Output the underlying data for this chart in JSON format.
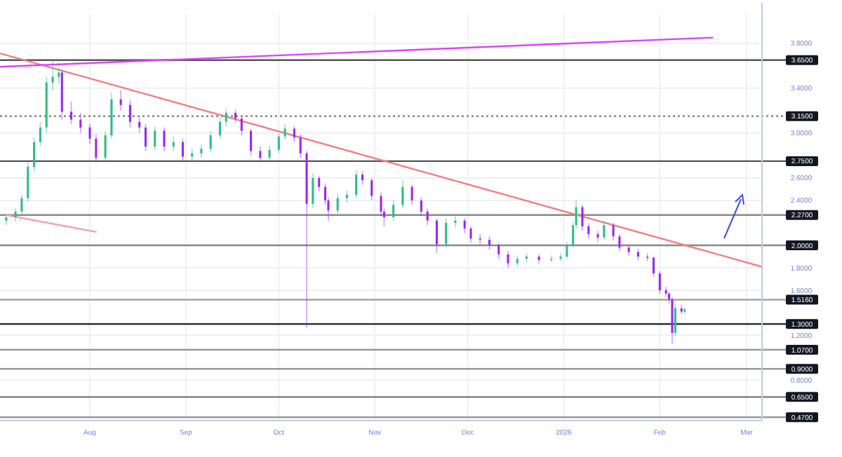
{
  "chart_data": {
    "type": "candlestick",
    "x": [
      "2025-07-05",
      "2025-07-08",
      "2025-07-10",
      "2025-07-12",
      "2025-07-14",
      "2025-07-16",
      "2025-07-18",
      "2025-07-20",
      "2025-07-22",
      "2025-07-23",
      "2025-07-26",
      "2025-07-29",
      "2025-08-01",
      "2025-08-03",
      "2025-08-06",
      "2025-08-08",
      "2025-08-11",
      "2025-08-14",
      "2025-08-17",
      "2025-08-19",
      "2025-08-22",
      "2025-08-25",
      "2025-08-28",
      "2025-08-31",
      "2025-09-03",
      "2025-09-06",
      "2025-09-09",
      "2025-09-12",
      "2025-09-14",
      "2025-09-17",
      "2025-09-19",
      "2025-09-22",
      "2025-09-25",
      "2025-09-28",
      "2025-10-01",
      "2025-10-03",
      "2025-10-06",
      "2025-10-08",
      "2025-10-10",
      "2025-10-12",
      "2025-10-14",
      "2025-10-16",
      "2025-10-17",
      "2025-10-20",
      "2025-10-23",
      "2025-10-26",
      "2025-10-28",
      "2025-10-31",
      "2025-11-03",
      "2025-11-04",
      "2025-11-07",
      "2025-11-10",
      "2025-11-13",
      "2025-11-16",
      "2025-11-18",
      "2025-11-21",
      "2025-11-24",
      "2025-11-27",
      "2025-11-30",
      "2025-12-02",
      "2025-12-05",
      "2025-12-08",
      "2025-12-11",
      "2025-12-14",
      "2025-12-17",
      "2025-12-20",
      "2025-12-24",
      "2025-12-28",
      "2025-12-31",
      "2026-01-02",
      "2026-01-04",
      "2026-01-05",
      "2026-01-07",
      "2026-01-09",
      "2026-01-12",
      "2026-01-14",
      "2026-01-17",
      "2026-01-19",
      "2026-01-22",
      "2026-01-25",
      "2026-01-28",
      "2026-01-30",
      "2026-02-01",
      "2026-02-03",
      "2026-02-04",
      "2026-02-05",
      "2026-02-06",
      "2026-02-08",
      "2026-02-09"
    ],
    "ohlc": [
      [
        2.22,
        2.28,
        2.18,
        2.25
      ],
      [
        2.25,
        2.33,
        2.21,
        2.3
      ],
      [
        2.3,
        2.45,
        2.27,
        2.42
      ],
      [
        2.42,
        2.74,
        2.39,
        2.7
      ],
      [
        2.7,
        2.96,
        2.66,
        2.92
      ],
      [
        2.92,
        3.1,
        2.88,
        3.05
      ],
      [
        3.05,
        3.5,
        3.0,
        3.45
      ],
      [
        3.45,
        3.66,
        3.38,
        3.5
      ],
      [
        3.5,
        3.63,
        3.44,
        3.54
      ],
      [
        3.54,
        3.56,
        3.12,
        3.19
      ],
      [
        3.19,
        3.28,
        3.08,
        3.12
      ],
      [
        3.12,
        3.18,
        3.0,
        3.05
      ],
      [
        3.05,
        3.08,
        2.9,
        2.95
      ],
      [
        2.95,
        2.99,
        2.74,
        2.78
      ],
      [
        2.78,
        3.02,
        2.75,
        2.98
      ],
      [
        2.98,
        3.36,
        2.95,
        3.3
      ],
      [
        3.3,
        3.38,
        3.2,
        3.25
      ],
      [
        3.25,
        3.29,
        3.05,
        3.1
      ],
      [
        3.1,
        3.14,
        3.0,
        3.05
      ],
      [
        3.05,
        3.08,
        2.84,
        2.88
      ],
      [
        2.88,
        3.06,
        2.85,
        3.02
      ],
      [
        3.02,
        3.05,
        2.84,
        2.88
      ],
      [
        2.88,
        2.97,
        2.84,
        2.92
      ],
      [
        2.92,
        2.95,
        2.75,
        2.79
      ],
      [
        2.79,
        2.86,
        2.74,
        2.82
      ],
      [
        2.82,
        2.9,
        2.78,
        2.86
      ],
      [
        2.86,
        3.02,
        2.83,
        2.98
      ],
      [
        2.98,
        3.14,
        2.95,
        3.1
      ],
      [
        3.1,
        3.22,
        3.06,
        3.18
      ],
      [
        3.18,
        3.21,
        3.09,
        3.13
      ],
      [
        3.13,
        3.15,
        2.98,
        3.02
      ],
      [
        3.02,
        3.04,
        2.8,
        2.84
      ],
      [
        2.84,
        2.88,
        2.74,
        2.78
      ],
      [
        2.78,
        2.89,
        2.75,
        2.85
      ],
      [
        2.85,
        3.0,
        2.82,
        2.97
      ],
      [
        2.97,
        3.08,
        2.94,
        3.04
      ],
      [
        3.04,
        3.06,
        2.92,
        2.96
      ],
      [
        2.96,
        2.99,
        2.78,
        2.82
      ],
      [
        2.82,
        2.84,
        1.27,
        2.37
      ],
      [
        2.37,
        2.64,
        2.33,
        2.6
      ],
      [
        2.6,
        2.62,
        2.48,
        2.52
      ],
      [
        2.52,
        2.55,
        2.36,
        2.4
      ],
      [
        2.4,
        2.43,
        2.22,
        2.31
      ],
      [
        2.31,
        2.46,
        2.28,
        2.42
      ],
      [
        2.42,
        2.49,
        2.38,
        2.45
      ],
      [
        2.45,
        2.67,
        2.42,
        2.63
      ],
      [
        2.63,
        2.66,
        2.54,
        2.58
      ],
      [
        2.58,
        2.6,
        2.4,
        2.44
      ],
      [
        2.44,
        2.47,
        2.26,
        2.3
      ],
      [
        2.3,
        2.33,
        2.17,
        2.25
      ],
      [
        2.25,
        2.4,
        2.22,
        2.36
      ],
      [
        2.36,
        2.58,
        2.33,
        2.52
      ],
      [
        2.52,
        2.54,
        2.36,
        2.4
      ],
      [
        2.4,
        2.43,
        2.26,
        2.3
      ],
      [
        2.3,
        2.33,
        2.18,
        2.22
      ],
      [
        2.22,
        2.24,
        1.93,
        2.01
      ],
      [
        2.01,
        2.24,
        1.98,
        2.2
      ],
      [
        2.2,
        2.26,
        2.16,
        2.22
      ],
      [
        2.22,
        2.24,
        2.11,
        2.15
      ],
      [
        2.15,
        2.17,
        2.02,
        2.06
      ],
      [
        2.06,
        2.1,
        2.01,
        2.05
      ],
      [
        2.05,
        2.08,
        1.96,
        2.0
      ],
      [
        2.0,
        2.02,
        1.88,
        1.92
      ],
      [
        1.92,
        1.95,
        1.8,
        1.84
      ],
      [
        1.84,
        1.91,
        1.81,
        1.88
      ],
      [
        1.88,
        1.93,
        1.85,
        1.9
      ],
      [
        1.9,
        1.92,
        1.84,
        1.87
      ],
      [
        1.87,
        1.91,
        1.85,
        1.88
      ],
      [
        1.88,
        1.93,
        1.86,
        1.9
      ],
      [
        1.9,
        2.03,
        1.88,
        2.0
      ],
      [
        2.0,
        2.21,
        1.98,
        2.18
      ],
      [
        2.18,
        2.4,
        2.15,
        2.34
      ],
      [
        2.34,
        2.36,
        2.13,
        2.17
      ],
      [
        2.17,
        2.2,
        2.06,
        2.1
      ],
      [
        2.1,
        2.13,
        2.03,
        2.07
      ],
      [
        2.07,
        2.22,
        2.05,
        2.18
      ],
      [
        2.18,
        2.2,
        2.04,
        2.08
      ],
      [
        2.08,
        2.1,
        1.95,
        1.98
      ],
      [
        1.98,
        2.01,
        1.91,
        1.94
      ],
      [
        1.94,
        1.97,
        1.87,
        1.9
      ],
      [
        1.9,
        1.93,
        1.86,
        1.89
      ],
      [
        1.89,
        1.9,
        1.72,
        1.75
      ],
      [
        1.75,
        1.77,
        1.57,
        1.6
      ],
      [
        1.6,
        1.63,
        1.54,
        1.57
      ],
      [
        1.57,
        1.59,
        1.48,
        1.52
      ],
      [
        1.52,
        1.54,
        1.12,
        1.22
      ],
      [
        1.22,
        1.48,
        1.19,
        1.44
      ],
      [
        1.44,
        1.47,
        1.39,
        1.41
      ],
      [
        1.41,
        1.45,
        1.39,
        1.43
      ]
    ],
    "series": [
      {
        "type": "line",
        "x": [
          "2025-07-03",
          "2026-03-06"
        ],
        "values": [
          3.71,
          1.81
        ],
        "color": "#f77c80"
      },
      {
        "type": "line",
        "x": [
          "2025-07-03",
          "2026-02-18"
        ],
        "values": [
          3.59,
          3.85
        ],
        "color": "#e040fb"
      },
      {
        "type": "line",
        "x": [
          "2025-07-05",
          "2025-08-03"
        ],
        "values": [
          2.27,
          2.12
        ],
        "color": "#f7a0a8"
      }
    ],
    "xlim": [
      "2025-07-03",
      "2026-03-06"
    ],
    "xticks": [
      {
        "value": "2025-08-01",
        "label": "Aug"
      },
      {
        "value": "2025-09-01",
        "label": "Sep"
      },
      {
        "value": "2025-10-01",
        "label": "Oct"
      },
      {
        "value": "2025-11-01",
        "label": "Nov"
      },
      {
        "value": "2025-12-01",
        "label": "Dec"
      },
      {
        "value": "2026-01-01",
        "label": "2026"
      },
      {
        "value": "2026-02-01",
        "label": "Feb"
      },
      {
        "value": "2026-03-01",
        "label": "Mar"
      }
    ],
    "ylim": [
      0.44,
      4.06
    ],
    "yticks": [
      {
        "value": 3.8,
        "label": "3.8000"
      },
      {
        "value": 3.4,
        "label": "3.4000"
      },
      {
        "value": 3.0,
        "label": "3.0000"
      },
      {
        "value": 2.6,
        "label": "2.6000"
      },
      {
        "value": 2.4,
        "label": "2.4000"
      },
      {
        "value": 1.8,
        "label": "1.8000"
      },
      {
        "value": 1.6,
        "label": "1.6000"
      },
      {
        "value": 1.2,
        "label": "1.2000"
      },
      {
        "value": 0.8,
        "label": "0.8000"
      }
    ],
    "ref_lines": [
      {
        "axis": "y",
        "value": 3.65,
        "label": "3.6500",
        "color": "#555555"
      },
      {
        "axis": "y",
        "value": 3.15,
        "label": "3.1500",
        "color": "#888888",
        "line_style": "dotted"
      },
      {
        "axis": "y",
        "value": 2.75,
        "label": "2.7500",
        "color": "#555555"
      },
      {
        "axis": "y",
        "value": 2.27,
        "label": "2.2700",
        "color": "#888888"
      },
      {
        "axis": "y",
        "value": 2.0,
        "label": "2.0000",
        "color": "#888888"
      },
      {
        "axis": "y",
        "value": 1.516,
        "label": "1.5160",
        "color": "#999999"
      },
      {
        "axis": "y",
        "value": 1.3,
        "label": "1.3000",
        "color": "#333333"
      },
      {
        "axis": "y",
        "value": 1.07,
        "label": "1.0700",
        "color": "#999999"
      },
      {
        "axis": "y",
        "value": 0.9,
        "label": "0.9000",
        "color": "#999999"
      },
      {
        "axis": "y",
        "value": 0.65,
        "label": "0.6500",
        "color": "#777777"
      },
      {
        "axis": "y",
        "value": 0.47,
        "label": "0.4700",
        "color": "#999999"
      }
    ],
    "grid": true
  }
}
